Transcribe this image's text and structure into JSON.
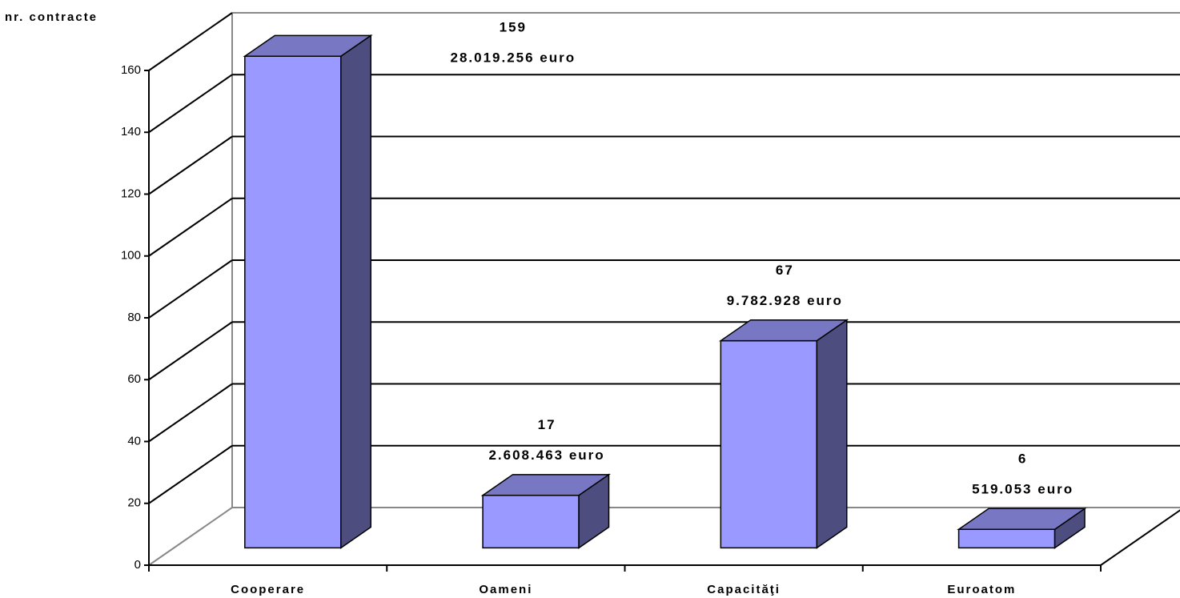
{
  "chart_data": {
    "type": "bar3d",
    "y_label": "nr. contracte",
    "categories": [
      "Cooperare",
      "Oameni",
      "Capacităţi",
      "Euroatom"
    ],
    "values": [
      159,
      17,
      67,
      6
    ],
    "amount_labels": [
      "28.019.256 euro",
      "2.608.463 euro",
      "9.782.928 euro",
      "519.053 euro"
    ],
    "color": "#9999ff",
    "ylim": [
      0,
      160
    ],
    "yticks": [
      0,
      20,
      40,
      60,
      80,
      100,
      120,
      140,
      160
    ],
    "grid": true
  }
}
